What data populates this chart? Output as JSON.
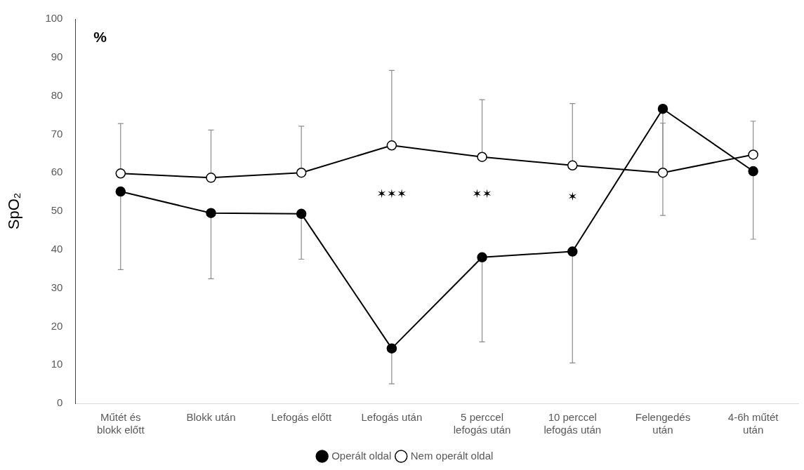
{
  "chart_data": {
    "type": "line",
    "ylabel": "SpO₂",
    "categories": [
      "Műtét és blokk előtt",
      "Blokk után",
      "Lefogás előtt",
      "Lefogás után",
      "5 perccel lefogás után",
      "10 perccel lefogás után",
      "Felengedés után",
      "4-6h műtét után"
    ],
    "series": [
      {
        "name": "Operált oldal",
        "color": "#000000",
        "values": [
          55.1,
          49.5,
          49.3,
          14.3,
          38.0,
          39.5,
          76.6,
          60.4
        ],
        "errors": [
          [
            34.8,
            55.1
          ],
          [
            32.4,
            49.5
          ],
          [
            37.5,
            49.3
          ],
          [
            5.1,
            14.3
          ],
          [
            16.0,
            38.0
          ],
          [
            10.5,
            39.5
          ],
          [
            48.9,
            76.6
          ],
          [
            42.7,
            60.4
          ]
        ]
      },
      {
        "name": "Nem operált oldal",
        "color": "#000000",
        "colors": [
          "#ffffff",
          "#ffffff",
          "#ffffff",
          "#ffffff",
          "#ffffff",
          "#ffffff",
          "#ffffff",
          "#ffffff"
        ],
        "values": [
          59.8,
          58.7,
          60.0,
          67.1,
          64.1,
          61.9,
          60.0,
          64.7
        ],
        "errors": [
          [
            59.8,
            72.8
          ],
          [
            58.7,
            71.1
          ],
          [
            60.0,
            72.1
          ],
          [
            67.1,
            86.6
          ],
          [
            64.1,
            79.0
          ],
          [
            61.9,
            78.0
          ],
          [
            60.0,
            72.9
          ],
          [
            64.7,
            73.4
          ]
        ]
      }
    ],
    "ylim": [
      0,
      100
    ],
    "yticks": [
      0,
      10,
      20,
      30,
      40,
      50,
      60,
      70,
      80,
      90,
      100
    ],
    "legend": "bottom",
    "marker": "circle",
    "line_style": "solid",
    "annotations": [
      "%",
      "✶✶✶",
      "✶✶",
      "✶"
    ]
  }
}
